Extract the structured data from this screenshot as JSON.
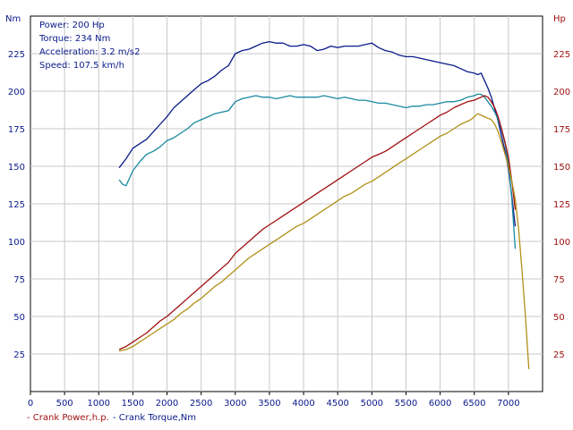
{
  "chart_data": {
    "type": "line",
    "left_axis_unit": "Nm",
    "right_axis_unit": "Hp",
    "xlim": [
      0,
      7500
    ],
    "ylim": [
      0,
      250
    ],
    "x_ticks": [
      0,
      500,
      1000,
      1500,
      2000,
      2500,
      3000,
      3500,
      4000,
      4500,
      5000,
      5500,
      6000,
      6500,
      7000
    ],
    "y_ticks": [
      25,
      50,
      75,
      100,
      125,
      150,
      175,
      200,
      225
    ],
    "grid": true,
    "info_lines": [
      "Power: 200 Hp",
      "Torque: 234 Nm",
      "Acceleration: 3.2 m/s2",
      "Speed: 107.5 km/h"
    ],
    "legend": [
      {
        "label": "- Crank Power,h.p.",
        "color": "#a01010"
      },
      {
        "label": "- Crank Torque,Nm",
        "color": "#0a1a8a"
      }
    ],
    "series": [
      {
        "color": "#0a1a8a",
        "x": [
          1300,
          1400,
          1500,
          1600,
          1700,
          1800,
          1900,
          2000,
          2100,
          2200,
          2300,
          2400,
          2500,
          2600,
          2700,
          2800,
          2900,
          3000,
          3100,
          3200,
          3300,
          3400,
          3500,
          3600,
          3700,
          3800,
          3900,
          4000,
          4100,
          4200,
          4300,
          4400,
          4500,
          4600,
          4700,
          4800,
          4900,
          5000,
          5100,
          5200,
          5300,
          5400,
          5500,
          5600,
          5700,
          5800,
          5900,
          6000,
          6100,
          6200,
          6300,
          6400,
          6500,
          6550,
          6600,
          6650,
          6700,
          6750,
          6800,
          6850,
          6900,
          6950,
          7000,
          7050,
          7100
        ],
        "y": [
          149,
          155,
          162,
          165,
          168,
          173,
          178,
          183,
          189,
          193,
          197,
          201,
          205,
          207,
          210,
          214,
          217,
          225,
          227,
          228,
          230,
          232,
          233,
          232,
          232,
          230,
          230,
          231,
          230,
          227,
          228,
          230,
          229,
          230,
          230,
          230,
          231,
          232,
          229,
          227,
          226,
          224,
          223,
          223,
          222,
          221,
          220,
          219,
          218,
          217,
          215,
          213,
          212,
          211,
          212,
          207,
          202,
          196,
          188,
          180,
          170,
          160,
          148,
          130,
          110
        ]
      },
      {
        "color": "#1a8aa0",
        "x": [
          1300,
          1350,
          1400,
          1450,
          1500,
          1600,
          1700,
          1800,
          1900,
          2000,
          2100,
          2200,
          2300,
          2400,
          2500,
          2600,
          2700,
          2800,
          2900,
          3000,
          3100,
          3200,
          3300,
          3400,
          3500,
          3600,
          3700,
          3800,
          3900,
          4000,
          4100,
          4200,
          4300,
          4400,
          4500,
          4600,
          4700,
          4800,
          4900,
          5000,
          5100,
          5200,
          5300,
          5400,
          5500,
          5600,
          5700,
          5800,
          5900,
          6000,
          6100,
          6200,
          6300,
          6400,
          6500,
          6550,
          6600,
          6650,
          6700,
          6750,
          6800,
          6850,
          6900,
          6950,
          7000,
          7050,
          7100
        ],
        "y": [
          141,
          138,
          137,
          142,
          147,
          153,
          158,
          160,
          163,
          167,
          169,
          172,
          175,
          179,
          181,
          183,
          185,
          186,
          187,
          193,
          195,
          196,
          197,
          196,
          196,
          195,
          196,
          197,
          196,
          196,
          196,
          196,
          197,
          196,
          195,
          196,
          195,
          194,
          194,
          193,
          192,
          192,
          191,
          190,
          189,
          190,
          190,
          191,
          191,
          192,
          193,
          193,
          194,
          196,
          197,
          198,
          198,
          196,
          193,
          190,
          186,
          181,
          174,
          165,
          152,
          128,
          95
        ]
      },
      {
        "color": "#a01010",
        "x": [
          1300,
          1400,
          1500,
          1600,
          1700,
          1800,
          1900,
          2000,
          2100,
          2200,
          2300,
          2400,
          2500,
          2600,
          2700,
          2800,
          2900,
          3000,
          3100,
          3200,
          3300,
          3400,
          3500,
          3600,
          3700,
          3800,
          3900,
          4000,
          4100,
          4200,
          4300,
          4400,
          4500,
          4600,
          4700,
          4800,
          4900,
          5000,
          5100,
          5200,
          5300,
          5400,
          5500,
          5600,
          5700,
          5800,
          5900,
          6000,
          6100,
          6200,
          6300,
          6400,
          6500,
          6550,
          6600,
          6650,
          6700,
          6750,
          6800,
          6850,
          6900,
          6950,
          7000,
          7050,
          7100
        ],
        "y": [
          28,
          30,
          33,
          36,
          39,
          43,
          47,
          50,
          54,
          58,
          62,
          66,
          70,
          74,
          78,
          82,
          86,
          92,
          96,
          100,
          104,
          108,
          111,
          114,
          117,
          120,
          123,
          126,
          129,
          132,
          135,
          138,
          141,
          144,
          147,
          150,
          153,
          156,
          158,
          160,
          163,
          166,
          169,
          172,
          175,
          178,
          181,
          184,
          186,
          189,
          191,
          193,
          194,
          195,
          196,
          197,
          196,
          193,
          189,
          183,
          175,
          166,
          156,
          140,
          121
        ]
      },
      {
        "color": "#b09018",
        "x": [
          1300,
          1400,
          1500,
          1600,
          1700,
          1800,
          1900,
          2000,
          2100,
          2200,
          2300,
          2400,
          2500,
          2600,
          2700,
          2800,
          2900,
          3000,
          3100,
          3200,
          3300,
          3400,
          3500,
          3600,
          3700,
          3800,
          3900,
          4000,
          4100,
          4200,
          4300,
          4400,
          4500,
          4600,
          4700,
          4800,
          4900,
          5000,
          5100,
          5200,
          5300,
          5400,
          5500,
          5600,
          5700,
          5800,
          5900,
          6000,
          6100,
          6200,
          6300,
          6400,
          6450,
          6500,
          6550,
          6600,
          6650,
          6700,
          6750,
          6800,
          6850,
          6900,
          6950,
          7000,
          7050,
          7100,
          7150,
          7200,
          7250,
          7300
        ],
        "y": [
          27,
          28,
          30,
          33,
          36,
          39,
          42,
          45,
          48,
          52,
          55,
          59,
          62,
          66,
          70,
          73,
          77,
          81,
          85,
          89,
          92,
          95,
          98,
          101,
          104,
          107,
          110,
          112,
          115,
          118,
          121,
          124,
          127,
          130,
          132,
          135,
          138,
          140,
          143,
          146,
          149,
          152,
          155,
          158,
          161,
          164,
          167,
          170,
          172,
          175,
          178,
          180,
          181,
          183,
          185,
          184,
          183,
          182,
          181,
          178,
          173,
          166,
          158,
          150,
          140,
          128,
          108,
          80,
          50,
          15
        ]
      }
    ]
  }
}
